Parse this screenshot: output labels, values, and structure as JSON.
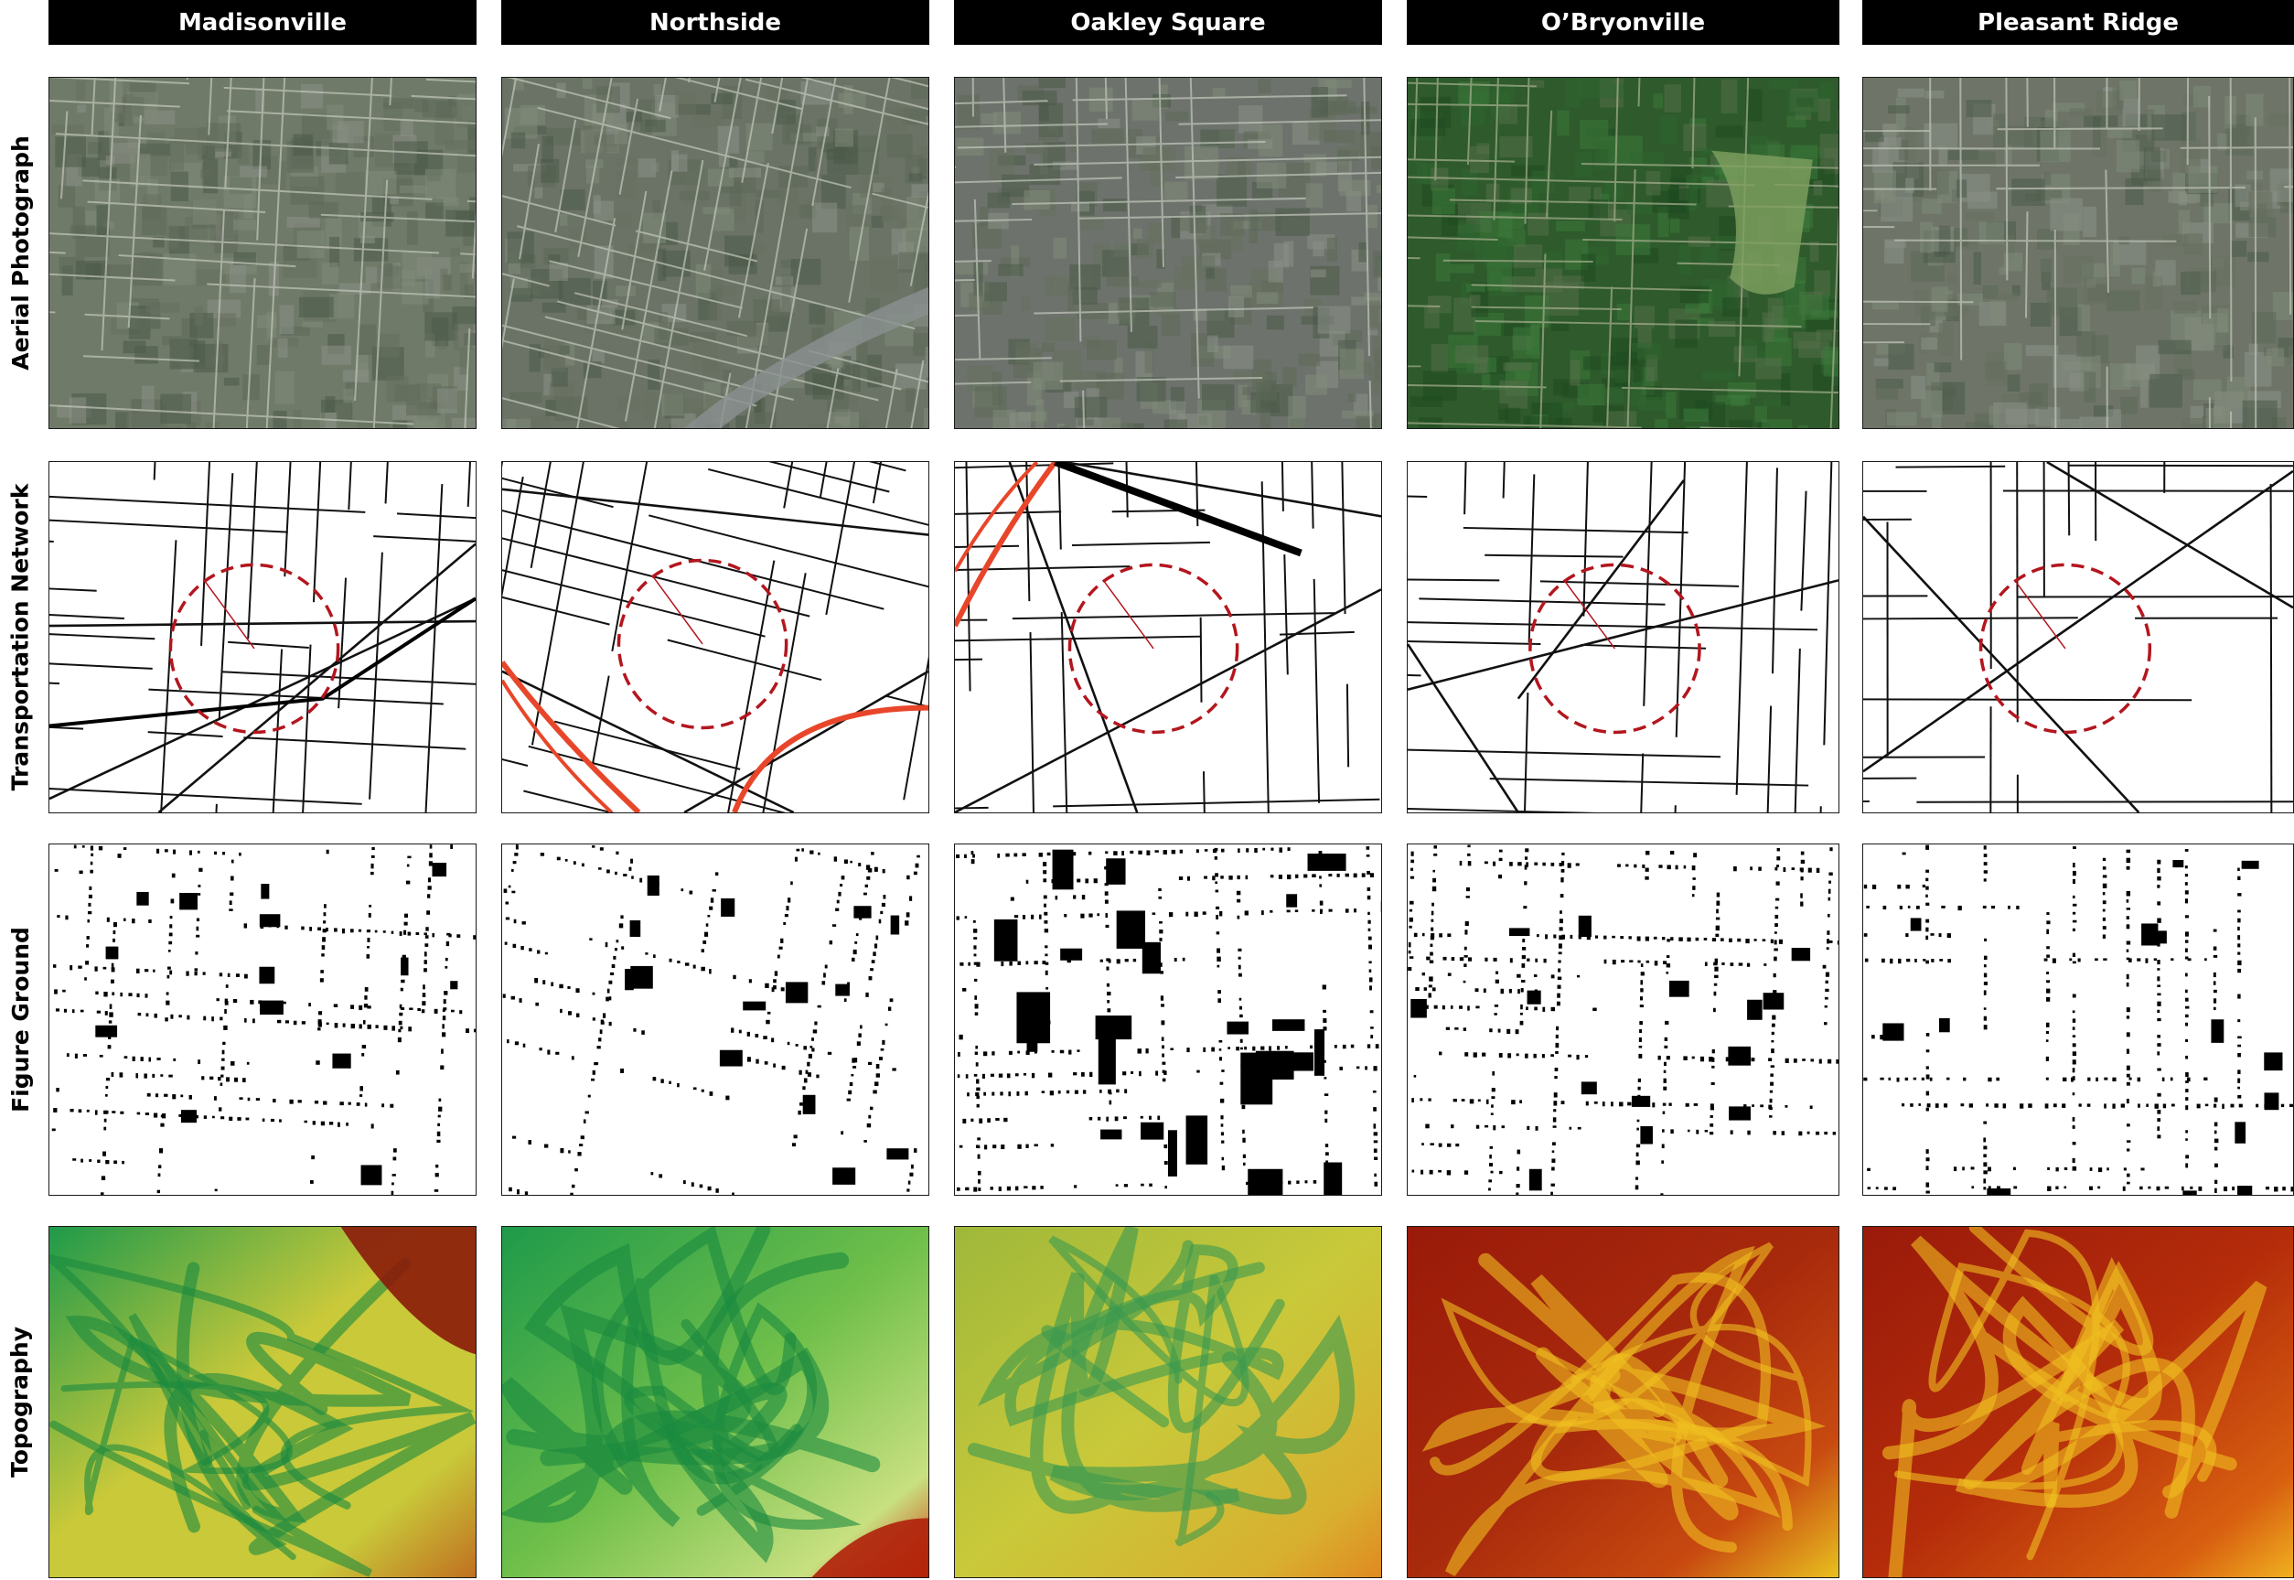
{
  "columns": [
    {
      "id": "madisonville",
      "label": "Madisonville"
    },
    {
      "id": "northside",
      "label": "Northside"
    },
    {
      "id": "oakley",
      "label": "Oakley Square"
    },
    {
      "id": "obryonville",
      "label": "O’Bryonville"
    },
    {
      "id": "pleasant",
      "label": "Pleasant Ridge"
    }
  ],
  "rows": [
    {
      "id": "aerial",
      "label": "Aerial Photograph"
    },
    {
      "id": "transport",
      "label": "Transportation Network"
    },
    {
      "id": "figure",
      "label": "Figure Ground"
    },
    {
      "id": "topo",
      "label": "Topography"
    }
  ],
  "colors": {
    "header_bg": "#000000",
    "header_text": "#ffffff",
    "road": "#111111",
    "highway": "#e8462a",
    "walk_radius": "#b3161e",
    "building": "#000000",
    "topo_low": "#1e9a4a",
    "topo_mid": "#c9c93a",
    "topo_high": "#9a1a0a"
  },
  "panel_styles": {
    "aerial": [
      "#6f7a68",
      "#6a7366",
      "#6d736c",
      "#2e5a2c",
      "#6e7568"
    ],
    "topo": [
      "#8fb24a",
      "#3aa84a",
      "#b8bc3a",
      "#b0300e",
      "#b8360c"
    ]
  }
}
